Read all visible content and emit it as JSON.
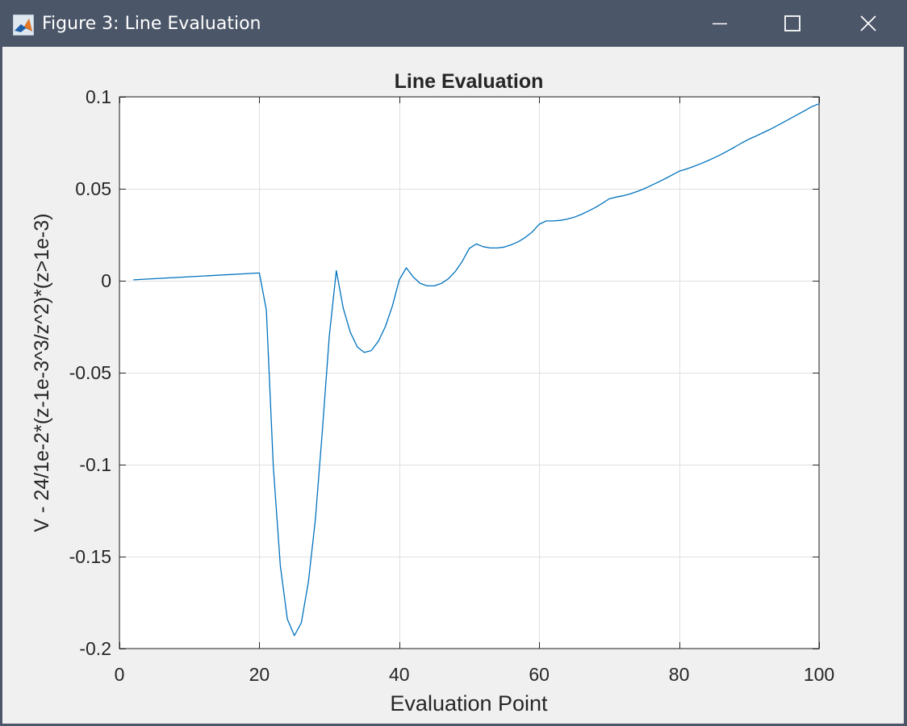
{
  "window": {
    "title": "Figure 3: Line Evaluation",
    "icon": "matlab-icon",
    "controls": [
      "minimize-icon",
      "maximize-icon",
      "close-icon"
    ],
    "titlebar_color": "#4b5668",
    "background_color": "#f0f0f0"
  },
  "chart_data": {
    "type": "line",
    "title": "Line Evaluation",
    "xlabel": "Evaluation Point",
    "ylabel": "V - 24/1e-2*(z-1e-3^3/z^2)*(z>1e-3)",
    "xlim": [
      0,
      100
    ],
    "ylim": [
      -0.2,
      0.1
    ],
    "xticks": [
      0,
      20,
      40,
      60,
      80,
      100
    ],
    "xtick_labels": [
      "0",
      "20",
      "40",
      "60",
      "80",
      "100"
    ],
    "yticks": [
      0.1,
      0.05,
      0,
      -0.05,
      -0.1,
      -0.15,
      -0.2
    ],
    "ytick_labels": [
      "0.1",
      "0.05",
      "0",
      "-0.05",
      "-0.1",
      "-0.15",
      "-0.2"
    ],
    "grid": true,
    "line_color": "#0072bd",
    "series": [
      {
        "x": [
          2,
          20,
          21,
          22,
          23,
          24,
          25,
          26,
          27,
          28,
          29,
          30,
          31,
          32,
          33,
          34,
          35,
          36,
          37,
          38,
          39,
          40,
          41,
          42,
          43,
          44,
          45,
          46,
          47,
          48,
          49,
          50,
          51,
          52,
          53,
          54,
          55,
          56,
          57,
          58,
          59,
          60,
          61,
          62,
          63,
          64,
          65,
          66,
          67,
          68,
          69,
          70,
          71,
          72,
          73,
          74,
          75,
          76,
          77,
          78,
          79,
          80,
          81,
          82,
          83,
          84,
          85,
          86,
          87,
          88,
          89,
          90,
          91,
          92,
          93,
          94,
          95,
          96,
          97,
          98,
          99,
          100
        ],
        "y": [
          0.0005,
          0.0042,
          -0.016,
          -0.101,
          -0.155,
          -0.184,
          -0.193,
          -0.186,
          -0.164,
          -0.13,
          -0.082,
          -0.03,
          0.0055,
          -0.015,
          -0.028,
          -0.036,
          -0.039,
          -0.038,
          -0.033,
          -0.025,
          -0.014,
          0.0005,
          0.007,
          0.002,
          -0.0015,
          -0.0028,
          -0.0028,
          -0.0015,
          0.001,
          0.005,
          0.0105,
          0.0175,
          0.02,
          0.0185,
          0.0178,
          0.0178,
          0.0183,
          0.0195,
          0.0212,
          0.0235,
          0.0265,
          0.0307,
          0.0325,
          0.0325,
          0.0328,
          0.0335,
          0.0345,
          0.036,
          0.0378,
          0.0398,
          0.042,
          0.0445,
          0.0455,
          0.0462,
          0.0472,
          0.0485,
          0.05,
          0.0518,
          0.0536,
          0.0555,
          0.0575,
          0.0595,
          0.0607,
          0.062,
          0.0635,
          0.0651,
          0.0668,
          0.0687,
          0.0707,
          0.0728,
          0.075,
          0.077,
          0.0787,
          0.0805,
          0.0823,
          0.0843,
          0.0863,
          0.0884,
          0.0905,
          0.0926,
          0.0947,
          0.0962
        ]
      }
    ]
  }
}
